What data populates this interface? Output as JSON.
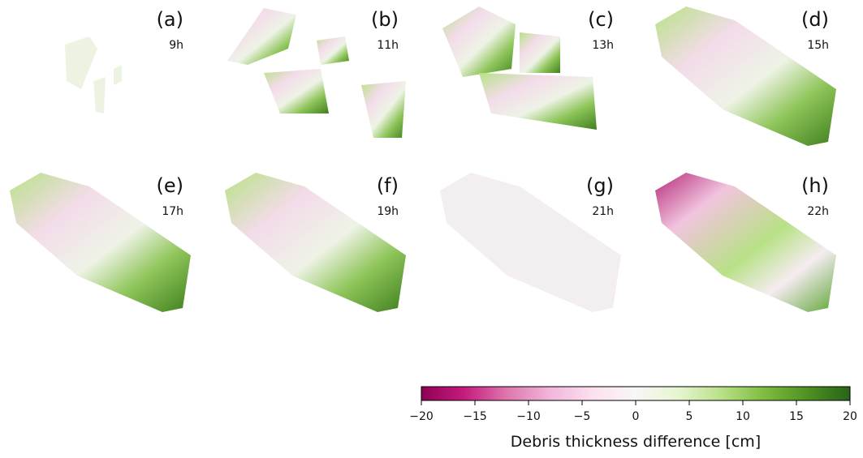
{
  "chart_data": {
    "type": "colorbar",
    "label": "Debris thickness difference [cm]",
    "xlim": [
      -20,
      20
    ],
    "xticks": [
      -20,
      -15,
      -10,
      -5,
      0,
      5,
      10,
      15,
      20
    ],
    "colormap": [
      "#8e0152",
      "#c51b7d",
      "#de77ae",
      "#f1b6da",
      "#fde0ef",
      "#f7f7f7",
      "#e6f5d0",
      "#b8e186",
      "#7fbc41",
      "#4d9221",
      "#276419"
    ]
  },
  "panels": [
    {
      "label": "(a)",
      "time": "9h"
    },
    {
      "label": "(b)",
      "time": "11h"
    },
    {
      "label": "(c)",
      "time": "13h"
    },
    {
      "label": "(d)",
      "time": "15h"
    },
    {
      "label": "(e)",
      "time": "17h"
    },
    {
      "label": "(f)",
      "time": "19h"
    },
    {
      "label": "(g)",
      "time": "21h"
    },
    {
      "label": "(h)",
      "time": "22h"
    }
  ]
}
